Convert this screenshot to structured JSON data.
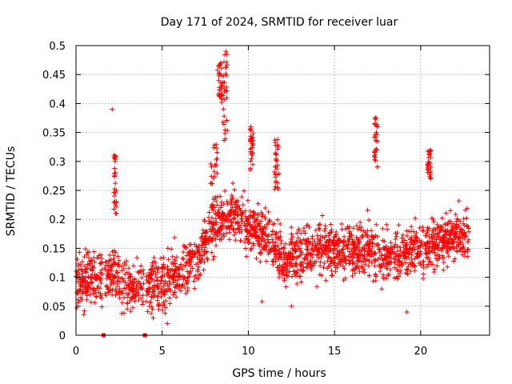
{
  "colors": {
    "series": "#ff0000",
    "axes": "#000000",
    "grid": "#a0a0a0",
    "background": "#ffffff"
  },
  "chart_data": {
    "type": "scatter",
    "title": "Day 171 of 2024, SRMTID for receiver luar",
    "xlabel": "GPS time / hours",
    "ylabel": "SRMTID / TECUs",
    "xlim": [
      0,
      24
    ],
    "ylim": [
      0,
      0.5
    ],
    "xticks": [
      0,
      5,
      10,
      15,
      20
    ],
    "xtick_labels": [
      "0",
      "5",
      "10",
      "15",
      "20"
    ],
    "yticks": [
      0,
      0.05,
      0.1,
      0.15,
      0.2,
      0.25,
      0.3,
      0.35,
      0.4,
      0.45,
      0.5
    ],
    "ytick_labels": [
      "0",
      "0.05",
      "0.1",
      "0.15",
      "0.2",
      "0.25",
      "0.3",
      "0.35",
      "0.4",
      "0.45",
      "0.5"
    ],
    "grid": true,
    "marker": "plus",
    "series": [
      {
        "name": "SRMTID",
        "trend": {
          "x": [
            0,
            1,
            2,
            3,
            4,
            5,
            6,
            7,
            7.5,
            8,
            9,
            10,
            11,
            12,
            13,
            14,
            15,
            16,
            17,
            18,
            19,
            20,
            21,
            22,
            22.8
          ],
          "y": [
            0.09,
            0.1,
            0.105,
            0.08,
            0.085,
            0.09,
            0.11,
            0.13,
            0.16,
            0.19,
            0.21,
            0.19,
            0.17,
            0.13,
            0.14,
            0.15,
            0.15,
            0.145,
            0.15,
            0.14,
            0.14,
            0.15,
            0.16,
            0.17,
            0.165
          ]
        },
        "bursts": [
          {
            "x": [
              2.2,
              2.35
            ],
            "y": [
              0.21,
              0.315
            ]
          },
          {
            "x": [
              7.8,
              8.2
            ],
            "y": [
              0.22,
              0.33
            ]
          },
          {
            "x": [
              8.2,
              8.5
            ],
            "y": [
              0.4,
              0.47
            ]
          },
          {
            "x": [
              8.5,
              8.8
            ],
            "y": [
              0.33,
              0.49
            ]
          },
          {
            "x": [
              10.1,
              10.3
            ],
            "y": [
              0.28,
              0.36
            ]
          },
          {
            "x": [
              11.5,
              11.8
            ],
            "y": [
              0.25,
              0.345
            ]
          },
          {
            "x": [
              17.3,
              17.5
            ],
            "y": [
              0.29,
              0.38
            ]
          },
          {
            "x": [
              20.4,
              20.6
            ],
            "y": [
              0.27,
              0.32
            ]
          }
        ],
        "outliers": [
          {
            "x": 2.1,
            "y": 0.39
          },
          {
            "x": 8.4,
            "y": 0.47
          },
          {
            "x": 8.7,
            "y": 0.49
          },
          {
            "x": 8.75,
            "y": 0.41
          },
          {
            "x": 10.15,
            "y": 0.36
          },
          {
            "x": 17.4,
            "y": 0.375
          },
          {
            "x": 5.3,
            "y": 0.02
          },
          {
            "x": 19.2,
            "y": 0.04
          },
          {
            "x": 12.5,
            "y": 0.05
          },
          {
            "x": 10.8,
            "y": 0.058
          }
        ],
        "gaps_at_zero": [
          1.6,
          4.0
        ]
      }
    ]
  }
}
